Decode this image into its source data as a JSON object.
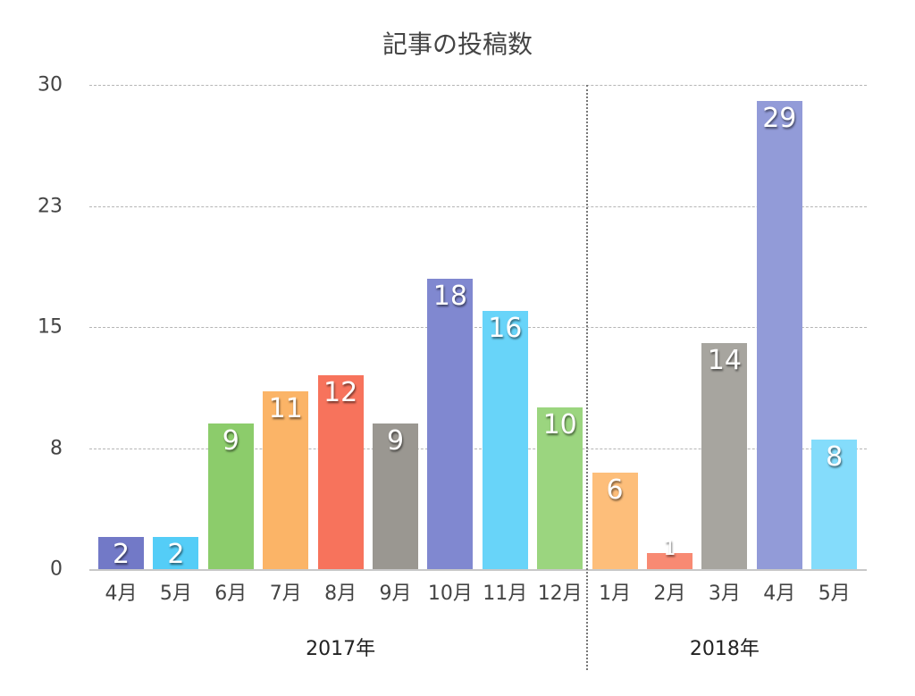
{
  "chart_data": {
    "type": "bar",
    "title": "記事の投稿数",
    "xlabel": "",
    "ylabel": "",
    "ylim": [
      0,
      30
    ],
    "yticks": [
      "0",
      "8",
      "15",
      "23",
      "30"
    ],
    "grid": true,
    "legend": null,
    "categories": [
      "4月",
      "5月",
      "6月",
      "7月",
      "8月",
      "9月",
      "10月",
      "11月",
      "12月",
      "1月",
      "2月",
      "3月",
      "4月",
      "5月"
    ],
    "values": [
      2,
      2,
      9,
      11,
      12,
      9,
      18,
      16,
      10,
      6,
      1,
      14,
      29,
      8
    ],
    "colors": [
      "#7279c7",
      "#54cdf7",
      "#8ccc6b",
      "#fbb467",
      "#f7735c",
      "#9a9791",
      "#8088d0",
      "#68d4f9",
      "#9bd57f",
      "#fdbe7a",
      "#f88a73",
      "#a7a59f",
      "#929bd8",
      "#84dcfb"
    ],
    "groups": [
      {
        "label": "2017年",
        "categories": [
          "4月",
          "5月",
          "6月",
          "7月",
          "8月",
          "9月",
          "10月",
          "11月",
          "12月"
        ]
      },
      {
        "label": "2018年",
        "categories": [
          "1月",
          "2月",
          "3月",
          "4月",
          "5月"
        ]
      }
    ]
  }
}
